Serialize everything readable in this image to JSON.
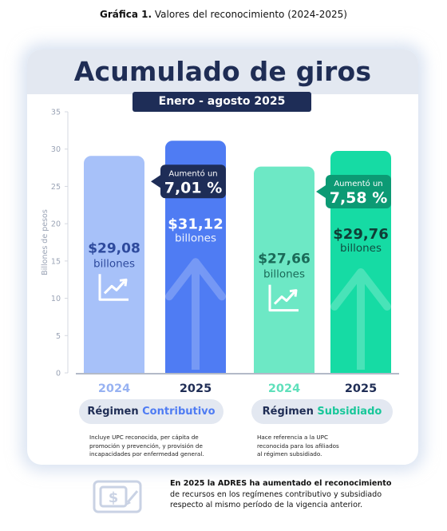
{
  "caption": {
    "bold": "Gráfica 1.",
    "text": "Valores del reconocimiento (2024-2025)"
  },
  "title": "Acumulado de giros",
  "period": "Enero - agosto 2025",
  "chart_data": {
    "type": "bar",
    "ylabel": "Billones de pesos",
    "ylim": [
      0,
      35
    ],
    "yticks": [
      0,
      5,
      10,
      15,
      20,
      25,
      30,
      35
    ],
    "groups": [
      {
        "name_prefix": "Régimen",
        "name_accent": "Contributivo",
        "accent_color": "#4f7cf3",
        "note": [
          "Incluye UPC reconocida, per cápita de",
          "promoción y prevención, y provisión de",
          "incapacidades por enfermedad general."
        ],
        "bars": [
          {
            "year": "2024",
            "value": 29.08,
            "amount": "$29,08",
            "unit": "billones",
            "fill": "#a7c1f9",
            "year_color": "#97b2f2",
            "label_color": "#2e4a9d",
            "icon": "trend-chart-icon"
          },
          {
            "year": "2025",
            "value": 31.12,
            "amount": "$31,12",
            "unit": "billones",
            "fill": "#4f7cf3",
            "year_color": "#1f2d55",
            "label_color": "#ffffff",
            "icon": "up-arrow-icon",
            "callout": {
              "line1": "Aumentó un",
              "line2": "7,01 %",
              "fill": "#1e2d57"
            }
          }
        ]
      },
      {
        "name_prefix": "Régimen",
        "name_accent": "Subsidiado",
        "accent_color": "#19c79a",
        "note": [
          "Hace referencia a la UPC",
          "reconocida para los afiliados",
          "al régimen subsidiado."
        ],
        "bars": [
          {
            "year": "2024",
            "value": 27.66,
            "amount": "$27,66",
            "unit": "billones",
            "fill": "#6de8c5",
            "year_color": "#5fe0bb",
            "label_color": "#1a6a58",
            "icon": "trend-chart-icon"
          },
          {
            "year": "2025",
            "value": 29.76,
            "amount": "$29,76",
            "unit": "billones",
            "fill": "#16dba4",
            "year_color": "#1f2d55",
            "label_color": "#0f3d36",
            "icon": "up-arrow-icon",
            "callout": {
              "line1": "Aumentó un",
              "line2": "7,58 %",
              "fill": "#0c9a74"
            }
          }
        ]
      }
    ]
  },
  "footer": {
    "bold": "En 2025 la ADRES ha aumentado el reconocimiento",
    "line2": "de recursos en los regímenes contributivo y subsidiado",
    "line3": "respecto al mismo período de la vigencia anterior.",
    "icon": "money-transfer-icon"
  }
}
